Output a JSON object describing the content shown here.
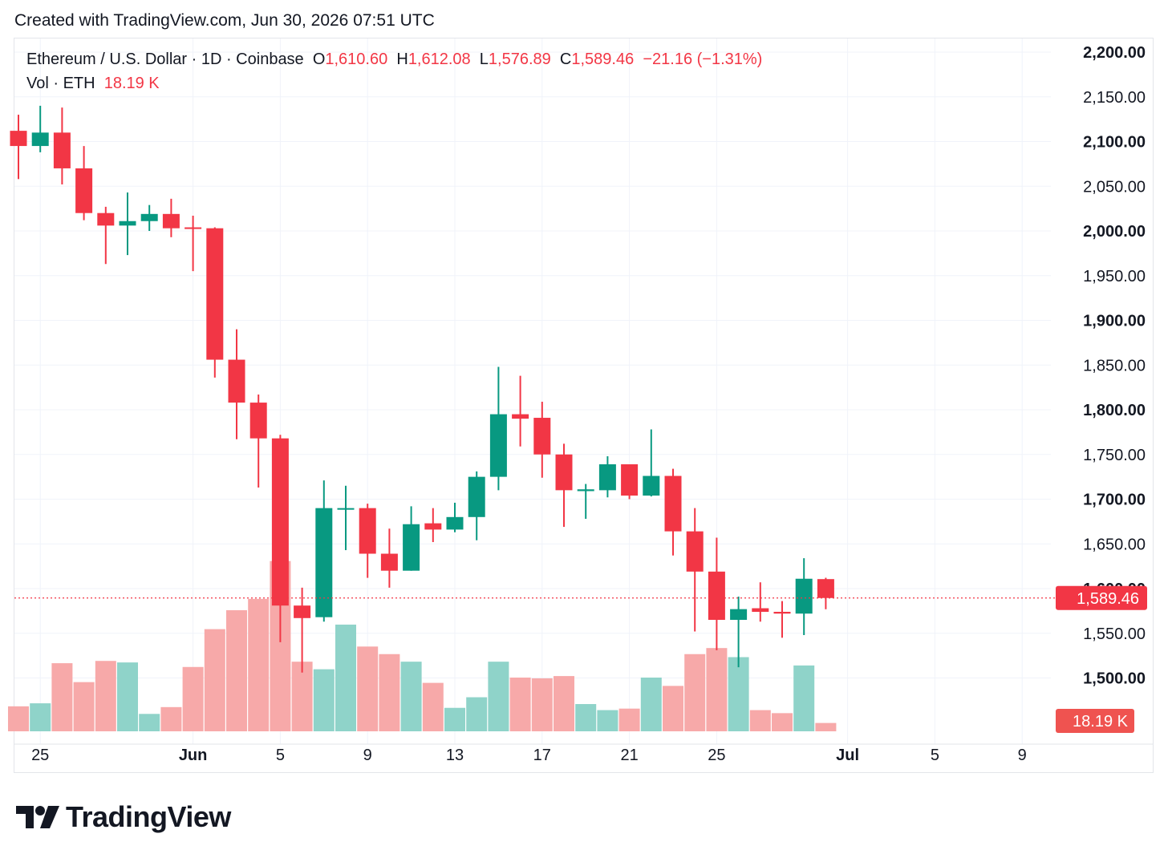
{
  "header": {
    "created_text": "Created with TradingView.com, Jun 30, 2026 07:51 UTC"
  },
  "legend": {
    "symbol": "Ethereum / U.S. Dollar · 1D · Coinbase",
    "o_label": "O",
    "o_value": "1,610.60",
    "h_label": "H",
    "h_value": "1,612.08",
    "l_label": "L",
    "l_value": "1,576.89",
    "c_label": "C",
    "c_value": "1,589.46",
    "change": "−21.16 (−1.31%)",
    "vol_label": "Vol · ETH",
    "vol_value": "18.19 K"
  },
  "footer": {
    "logo_text": "TradingView"
  },
  "colors": {
    "up": "#089981",
    "down": "#f23645",
    "vol_up": "#8fd3c9",
    "vol_down": "#f7a9a9",
    "grid": "#f0f3fa",
    "price_label_bg": "#f23645"
  },
  "chart_data": {
    "type": "candlestick",
    "x_start": "2026-05-24",
    "price_ylim": [
      1500,
      2200
    ],
    "y_ticks": [
      "2,200.00",
      "2,150.00",
      "2,100.00",
      "2,050.00",
      "2,000.00",
      "1,950.00",
      "1,900.00",
      "1,850.00",
      "1,800.00",
      "1,750.00",
      "1,700.00",
      "1,650.00",
      "1,600.00",
      "1,550.00",
      "1,500.00"
    ],
    "y_tick_values": [
      2200,
      2150,
      2100,
      2050,
      2000,
      1950,
      1900,
      1850,
      1800,
      1750,
      1700,
      1650,
      1600,
      1550,
      1500
    ],
    "x_ticks": [
      {
        "label": "25",
        "day": 1,
        "bold": false
      },
      {
        "label": "Jun",
        "day": 8,
        "bold": true
      },
      {
        "label": "5",
        "day": 12,
        "bold": false
      },
      {
        "label": "9",
        "day": 16,
        "bold": false
      },
      {
        "label": "13",
        "day": 20,
        "bold": false
      },
      {
        "label": "17",
        "day": 24,
        "bold": false
      },
      {
        "label": "21",
        "day": 28,
        "bold": false
      },
      {
        "label": "25",
        "day": 32,
        "bold": false
      },
      {
        "label": "Jul",
        "day": 38,
        "bold": true
      },
      {
        "label": "5",
        "day": 42,
        "bold": false
      },
      {
        "label": "9",
        "day": 46,
        "bold": false
      }
    ],
    "candles": [
      {
        "o": 2112,
        "h": 2130,
        "l": 2058,
        "c": 2095,
        "v": 0.33
      },
      {
        "o": 2095,
        "h": 2140,
        "l": 2088,
        "c": 2110,
        "v": 0.37
      },
      {
        "o": 2110,
        "h": 2138,
        "l": 2052,
        "c": 2070,
        "v": 0.9
      },
      {
        "o": 2070,
        "h": 2095,
        "l": 2012,
        "c": 2020,
        "v": 0.65
      },
      {
        "o": 2020,
        "h": 2027,
        "l": 1963,
        "c": 2006,
        "v": 0.93
      },
      {
        "o": 2006,
        "h": 2043,
        "l": 1973,
        "c": 2011,
        "v": 0.91
      },
      {
        "o": 2011,
        "h": 2029,
        "l": 2000,
        "c": 2019,
        "v": 0.23
      },
      {
        "o": 2019,
        "h": 2036,
        "l": 1993,
        "c": 2003,
        "v": 0.32
      },
      {
        "o": 2004,
        "h": 2017,
        "l": 1955,
        "c": 2003,
        "v": 0.85
      },
      {
        "o": 2003,
        "h": 2004,
        "l": 1836,
        "c": 1856,
        "v": 1.35
      },
      {
        "o": 1856,
        "h": 1890,
        "l": 1767,
        "c": 1808,
        "v": 1.6
      },
      {
        "o": 1808,
        "h": 1817,
        "l": 1713,
        "c": 1768,
        "v": 1.75
      },
      {
        "o": 1768,
        "h": 1772,
        "l": 1540,
        "c": 1581,
        "v": 2.25
      },
      {
        "o": 1581,
        "h": 1601,
        "l": 1506,
        "c": 1567,
        "v": 0.92
      },
      {
        "o": 1568,
        "h": 1721,
        "l": 1563,
        "c": 1690,
        "v": 0.82
      },
      {
        "o": 1690,
        "h": 1715,
        "l": 1643,
        "c": 1690,
        "v": 1.41
      },
      {
        "o": 1690,
        "h": 1695,
        "l": 1612,
        "c": 1639,
        "v": 1.12
      },
      {
        "o": 1639,
        "h": 1667,
        "l": 1601,
        "c": 1620,
        "v": 1.02
      },
      {
        "o": 1620,
        "h": 1692,
        "l": 1620,
        "c": 1672,
        "v": 0.92
      },
      {
        "o": 1673,
        "h": 1690,
        "l": 1652,
        "c": 1666,
        "v": 0.64
      },
      {
        "o": 1666,
        "h": 1696,
        "l": 1663,
        "c": 1680,
        "v": 0.31
      },
      {
        "o": 1680,
        "h": 1731,
        "l": 1654,
        "c": 1725,
        "v": 0.45
      },
      {
        "o": 1725,
        "h": 1848,
        "l": 1710,
        "c": 1795,
        "v": 0.92
      },
      {
        "o": 1795,
        "h": 1838,
        "l": 1759,
        "c": 1790,
        "v": 0.71
      },
      {
        "o": 1791,
        "h": 1809,
        "l": 1724,
        "c": 1750,
        "v": 0.7
      },
      {
        "o": 1750,
        "h": 1762,
        "l": 1669,
        "c": 1710,
        "v": 0.73
      },
      {
        "o": 1709,
        "h": 1717,
        "l": 1678,
        "c": 1711,
        "v": 0.36
      },
      {
        "o": 1710,
        "h": 1748,
        "l": 1702,
        "c": 1739,
        "v": 0.28
      },
      {
        "o": 1739,
        "h": 1739,
        "l": 1700,
        "c": 1704,
        "v": 0.3
      },
      {
        "o": 1704,
        "h": 1778,
        "l": 1703,
        "c": 1726,
        "v": 0.71
      },
      {
        "o": 1726,
        "h": 1734,
        "l": 1637,
        "c": 1664,
        "v": 0.6
      },
      {
        "o": 1664,
        "h": 1690,
        "l": 1552,
        "c": 1619,
        "v": 1.02
      },
      {
        "o": 1619,
        "h": 1657,
        "l": 1531,
        "c": 1565,
        "v": 1.1
      },
      {
        "o": 1565,
        "h": 1591,
        "l": 1512,
        "c": 1577,
        "v": 0.98
      },
      {
        "o": 1578,
        "h": 1607,
        "l": 1563,
        "c": 1574,
        "v": 0.28
      },
      {
        "o": 1574,
        "h": 1586,
        "l": 1545,
        "c": 1572,
        "v": 0.24
      },
      {
        "o": 1572,
        "h": 1634,
        "l": 1548,
        "c": 1611,
        "v": 0.87
      },
      {
        "o": 1610.6,
        "h": 1612.08,
        "l": 1576.89,
        "c": 1589.46,
        "v": 0.11
      }
    ],
    "last_price": 1589.46,
    "last_price_label": "1,589.46",
    "last_volume_label": "18.19 K"
  }
}
